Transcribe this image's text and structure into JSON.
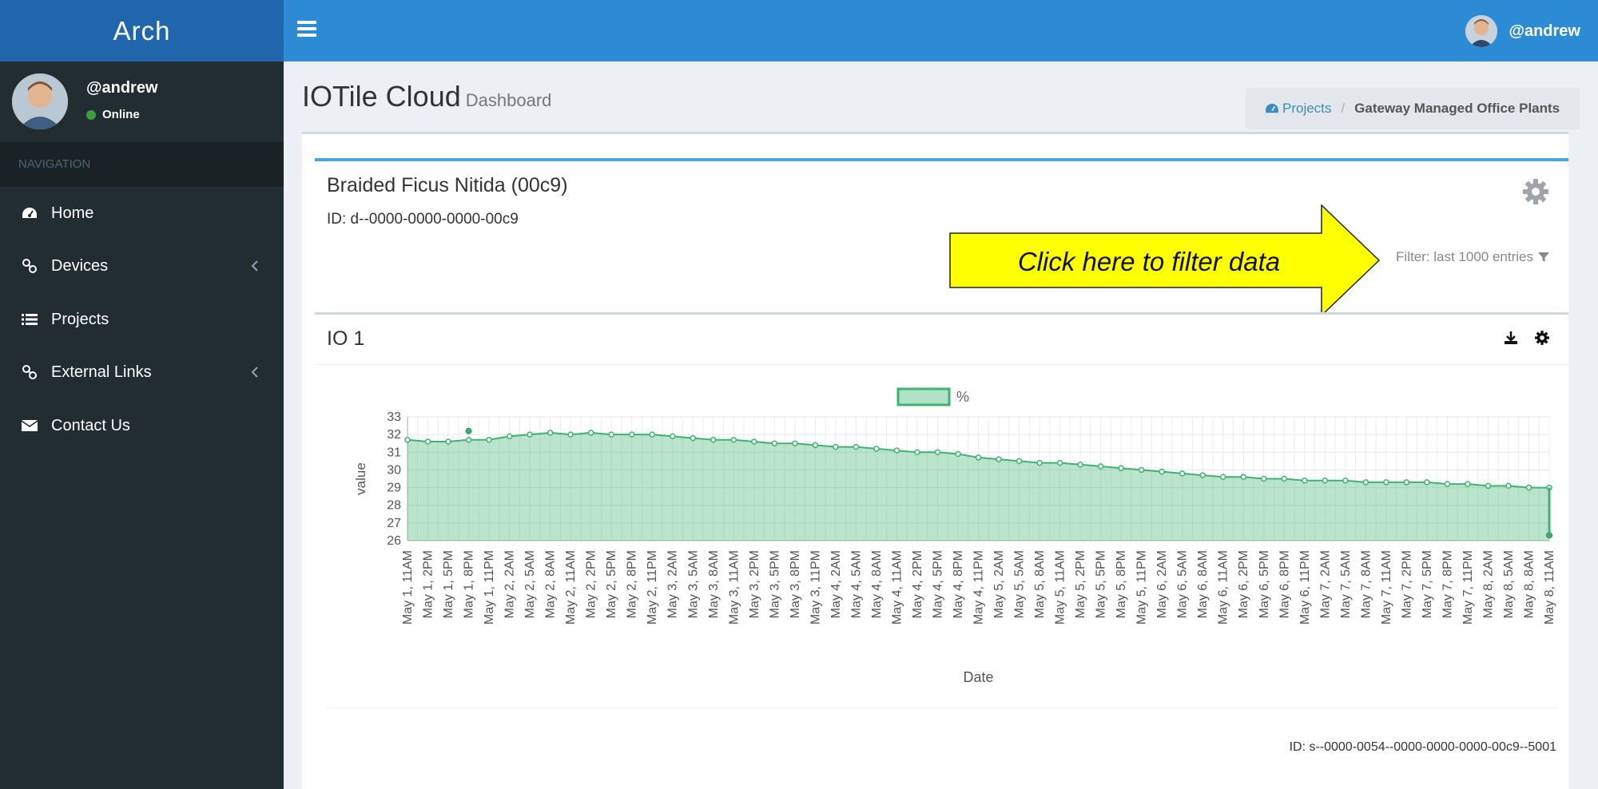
{
  "brand": "Arch",
  "header": {
    "username": "@andrew"
  },
  "sidebar": {
    "username": "@andrew",
    "status": "Online",
    "nav_header": "NAVIGATION",
    "items": [
      {
        "label": "Home",
        "icon": "dashboard-icon"
      },
      {
        "label": "Devices",
        "icon": "link-icon",
        "has_submenu": true
      },
      {
        "label": "Projects",
        "icon": "list-icon"
      },
      {
        "label": "External Links",
        "icon": "link-icon",
        "has_submenu": true
      },
      {
        "label": "Contact Us",
        "icon": "envelope-icon"
      }
    ]
  },
  "page": {
    "title": "IOTile Cloud",
    "subtitle": "Dashboard"
  },
  "breadcrumb": {
    "link": "Projects",
    "active": "Gateway Managed Office Plants"
  },
  "device": {
    "title": "Braided Ficus Nitida (00c9)",
    "id": "ID: d--0000-0000-0000-00c9",
    "filter_label": "Filter: last 1000 entries",
    "callout": "Click here to filter data"
  },
  "stream": {
    "title": "IO 1",
    "id": "ID: s--0000-0054--0000-0000-0000-00c9--5001"
  },
  "colors": {
    "accent": "#2d8bd6",
    "sidebar": "#222d32",
    "series": "#3cb371",
    "callout": "#ffff00"
  },
  "chart_data": {
    "type": "area",
    "xlabel": "Date",
    "ylabel": "value",
    "legend": "%",
    "legend_position": "top-center",
    "ylim": [
      26,
      33
    ],
    "yticks": [
      26,
      27,
      28,
      29,
      30,
      31,
      32,
      33
    ],
    "grid": true,
    "x": [
      "May 1, 11AM",
      "May 1, 2PM",
      "May 1, 5PM",
      "May 1, 8PM",
      "May 1, 11PM",
      "May 2, 2AM",
      "May 2, 5AM",
      "May 2, 8AM",
      "May 2, 11AM",
      "May 2, 2PM",
      "May 2, 5PM",
      "May 2, 8PM",
      "May 2, 11PM",
      "May 3, 2AM",
      "May 3, 5AM",
      "May 3, 8AM",
      "May 3, 11AM",
      "May 3, 2PM",
      "May 3, 5PM",
      "May 3, 8PM",
      "May 3, 11PM",
      "May 4, 2AM",
      "May 4, 5AM",
      "May 4, 8AM",
      "May 4, 11AM",
      "May 4, 2PM",
      "May 4, 5PM",
      "May 4, 8PM",
      "May 4, 11PM",
      "May 5, 2AM",
      "May 5, 5AM",
      "May 5, 8AM",
      "May 5, 11AM",
      "May 5, 2PM",
      "May 5, 5PM",
      "May 5, 8PM",
      "May 5, 11PM",
      "May 6, 2AM",
      "May 6, 5AM",
      "May 6, 8AM",
      "May 6, 11AM",
      "May 6, 2PM",
      "May 6, 5PM",
      "May 6, 8PM",
      "May 6, 11PM",
      "May 7, 2AM",
      "May 7, 5AM",
      "May 7, 8AM",
      "May 7, 11AM",
      "May 7, 2PM",
      "May 7, 5PM",
      "May 7, 8PM",
      "May 7, 11PM",
      "May 8, 2AM",
      "May 8, 5AM",
      "May 8, 8AM",
      "May 8, 11AM"
    ],
    "values": [
      31.7,
      31.6,
      31.6,
      31.7,
      31.7,
      31.9,
      32.0,
      32.1,
      32.0,
      32.1,
      32.0,
      32.0,
      32.0,
      31.9,
      31.8,
      31.7,
      31.7,
      31.6,
      31.5,
      31.5,
      31.4,
      31.3,
      31.3,
      31.2,
      31.1,
      31.0,
      31.0,
      30.9,
      30.7,
      30.6,
      30.5,
      30.4,
      30.4,
      30.3,
      30.2,
      30.1,
      30.0,
      29.9,
      29.8,
      29.7,
      29.6,
      29.6,
      29.5,
      29.5,
      29.4,
      29.4,
      29.4,
      29.3,
      29.3,
      29.3,
      29.3,
      29.2,
      29.2,
      29.1,
      29.1,
      29.0,
      29.0
    ],
    "outliers": [
      {
        "x": "May 1, 8PM",
        "y": 32.2
      },
      {
        "x": "May 8, 11AM",
        "y": 26.3
      }
    ]
  }
}
